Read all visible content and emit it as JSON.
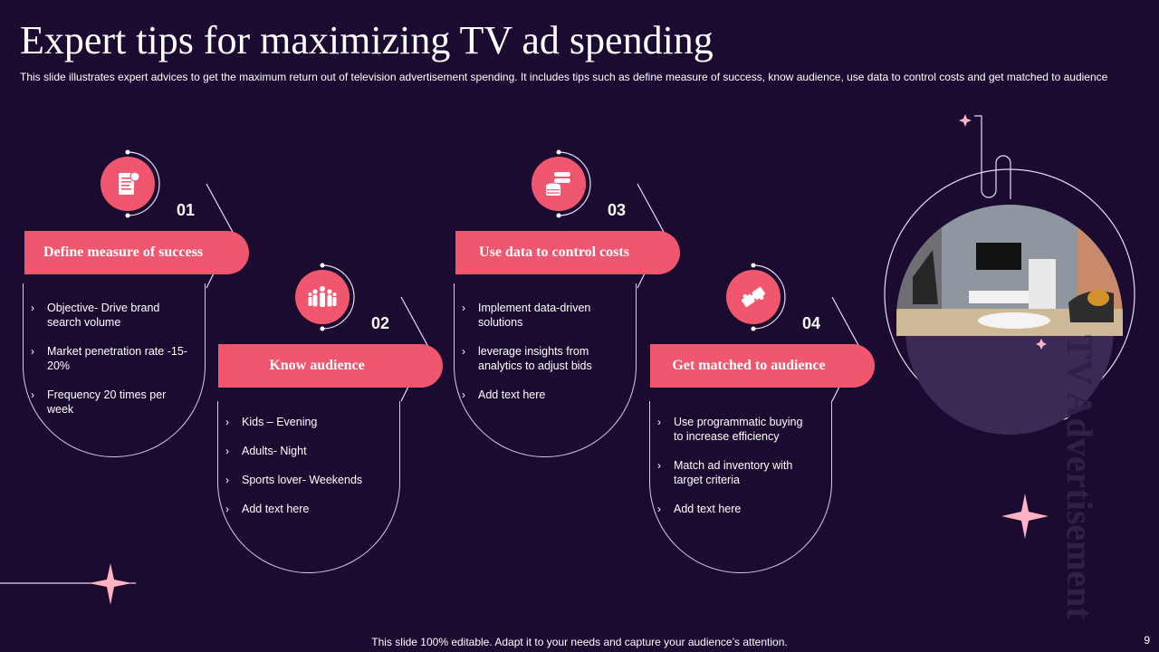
{
  "slide": {
    "title": "Expert tips for maximizing TV ad spending",
    "subtitle": "This slide illustrates expert advices to get the maximum return out of television advertisement spending. It includes tips such as define measure of success, know audience, use data to control costs and get matched to audience",
    "footer": "This slide 100% editable. Adapt it to your needs and capture your audience’s attention.",
    "page_number": "9",
    "vertical_label": "TV Advertisement",
    "accent_color": "#f0566d",
    "background_color": "#1b0b30"
  },
  "steps": [
    {
      "number": "01",
      "title": "Define measure of success",
      "icon": "report-icon",
      "bullets": [
        "Objective- Drive brand search volume",
        "Market penetration rate -15-20%",
        "Frequency 20 times per week"
      ]
    },
    {
      "number": "02",
      "title": "Know audience",
      "icon": "people-group-icon",
      "bullets": [
        "Kids – Evening",
        "Adults- Night",
        "Sports lover- Weekends",
        "Add text here"
      ]
    },
    {
      "number": "03",
      "title": "Use data to control costs",
      "icon": "database-icon",
      "bullets": [
        "Implement data-driven solutions",
        "leverage insights from analytics to adjust bids",
        "Add text here"
      ]
    },
    {
      "number": "04",
      "title": "Get matched to audience",
      "icon": "puzzle-icon",
      "bullets": [
        "Use programmatic buying to increase efficiency",
        "Match ad inventory with target criteria",
        "Add text here"
      ]
    }
  ]
}
